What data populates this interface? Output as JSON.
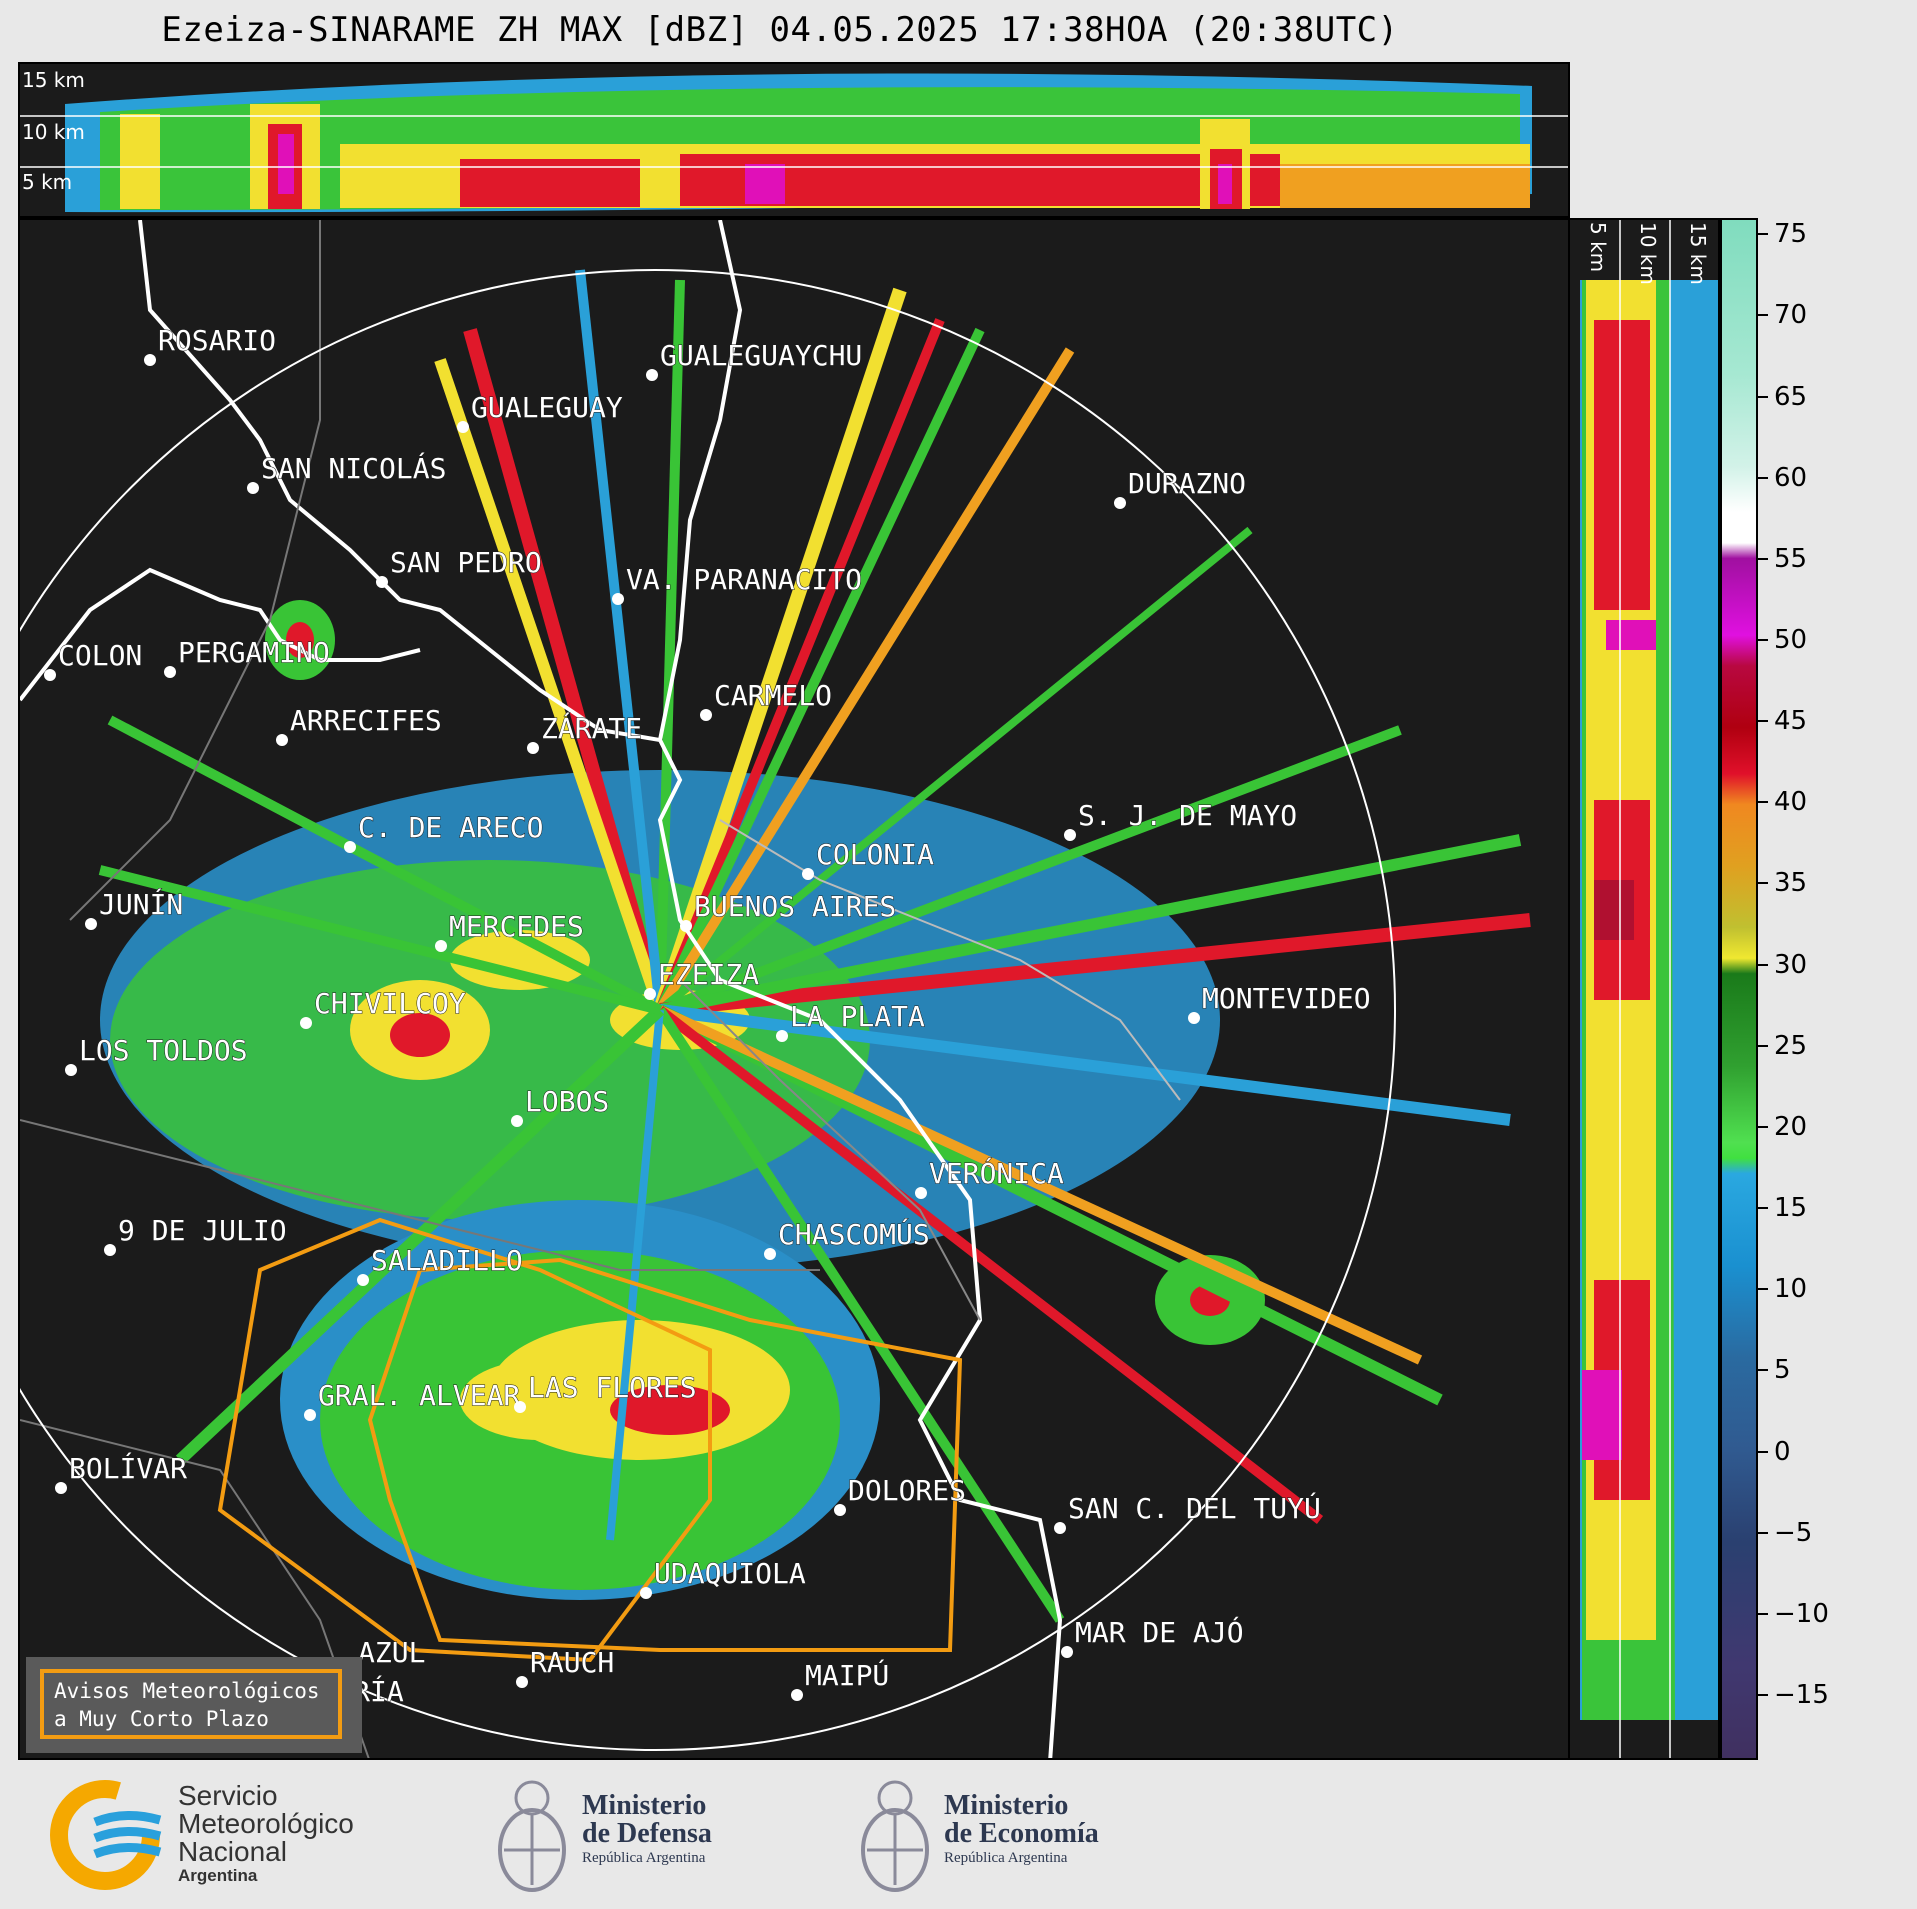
{
  "title": "Ezeiza-SINARAME ZH MAX [dBZ] 04.05.2025 17:38HOA (20:38UTC)",
  "top_panel": {
    "height_labels": [
      "15 km",
      "10 km",
      "5 km"
    ]
  },
  "side_panel": {
    "height_labels": [
      "5 km",
      "10 km",
      "15 km"
    ]
  },
  "colorbar": {
    "ticks": [
      "75",
      "70",
      "65",
      "60",
      "55",
      "50",
      "45",
      "40",
      "35",
      "30",
      "25",
      "20",
      "15",
      "10",
      "5",
      "0",
      "−5",
      "−10",
      "−15"
    ],
    "range_dbz": [
      -19,
      76
    ]
  },
  "cities": [
    {
      "name": "ROSARIO"
    },
    {
      "name": "GUALEGUAYCHU"
    },
    {
      "name": "GUALEGUAY"
    },
    {
      "name": "SAN NICOLÁS"
    },
    {
      "name": "DURAZNO"
    },
    {
      "name": "SAN PEDRO"
    },
    {
      "name": "VA. PARANACITO"
    },
    {
      "name": "COLON"
    },
    {
      "name": "PERGAMINO"
    },
    {
      "name": "CARMELO"
    },
    {
      "name": "ARRECIFES"
    },
    {
      "name": "ZÁRATE"
    },
    {
      "name": "S. J. DE MAYO"
    },
    {
      "name": "C. DE ARECO"
    },
    {
      "name": "COLONIA"
    },
    {
      "name": "JUNÍN"
    },
    {
      "name": "BUENOS AIRES"
    },
    {
      "name": "MERCEDES"
    },
    {
      "name": "EZEIZA"
    },
    {
      "name": "MONTEVIDEO"
    },
    {
      "name": "CHIVILCOY"
    },
    {
      "name": "LA PLATA"
    },
    {
      "name": "LOS TOLDOS"
    },
    {
      "name": "LOBOS"
    },
    {
      "name": "VERÓNICA"
    },
    {
      "name": "9 DE JULIO"
    },
    {
      "name": "CHASCOMÚS"
    },
    {
      "name": "SALADILLO"
    },
    {
      "name": "GRAL. ALVEAR"
    },
    {
      "name": "LAS FLORES"
    },
    {
      "name": "BOLÍVAR"
    },
    {
      "name": "DOLORES"
    },
    {
      "name": "SAN C. DEL TUYÚ"
    },
    {
      "name": "UDAQUIOLA"
    },
    {
      "name": "MAR DE AJÓ"
    },
    {
      "name": "AZUL"
    },
    {
      "name": "RAUCH"
    },
    {
      "name": "OLAVARRÍA"
    },
    {
      "name": "MAIPÚ"
    }
  ],
  "legend": {
    "line1": "Avisos Meteorológicos",
    "line2": "a Muy Corto Plazo",
    "color": "#f39c12"
  },
  "logos": {
    "smn": {
      "line1": "Servicio",
      "line2": "Meteorológico",
      "line3": "Nacional",
      "line4": "Argentina"
    },
    "defensa": {
      "line1": "Ministerio",
      "line2": "de Defensa",
      "line3": "República Argentina"
    },
    "economia": {
      "line1": "Ministerio",
      "line2": "de Economía",
      "line3": "República Argentina"
    }
  }
}
